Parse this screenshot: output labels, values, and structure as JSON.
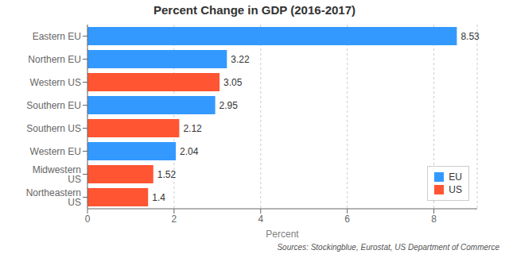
{
  "chart_data": {
    "type": "bar",
    "orientation": "horizontal",
    "title": "Percent Change in GDP (2016-2017)",
    "xlabel": "Percent",
    "annotations": [
      "Sources: Stockingblue, Eurostat, US Department of Commerce"
    ],
    "categories": [
      "Eastern EU",
      "Northern EU",
      "Western US",
      "Southern EU",
      "Southern US",
      "Western EU",
      "Midwestern US",
      "Northeastern US"
    ],
    "series": [
      {
        "name": "EU",
        "color": "#3399FF",
        "values": [
          8.53,
          3.22,
          null,
          2.95,
          null,
          2.04,
          null,
          null
        ]
      },
      {
        "name": "US",
        "color": "#FF5533",
        "values": [
          null,
          null,
          3.05,
          null,
          2.12,
          null,
          1.52,
          1.4
        ]
      }
    ],
    "xlim": [
      0,
      9
    ],
    "xticks": [
      0,
      2,
      4,
      6,
      8
    ],
    "grid": true,
    "data_labels": true,
    "legend": "lower right"
  }
}
